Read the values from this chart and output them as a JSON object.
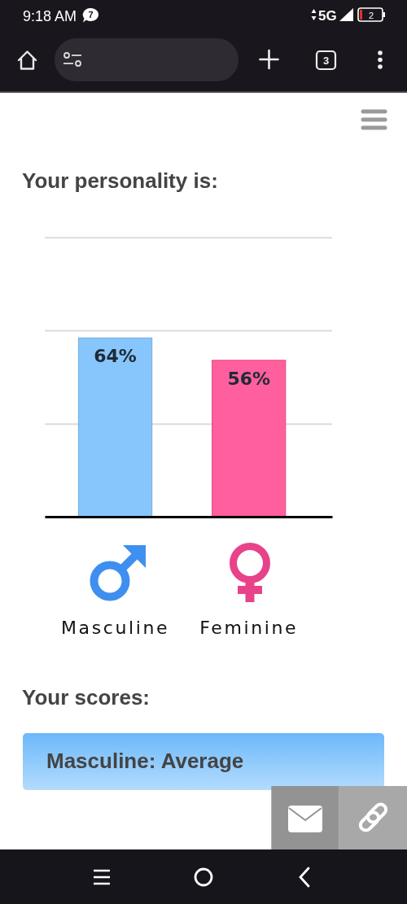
{
  "chart_data": {
    "type": "bar",
    "title": "Your personality is:",
    "categories": [
      "Masculine",
      "Feminine"
    ],
    "values": [
      64,
      56
    ],
    "colors": [
      "#86c6fc",
      "#ff5f9c"
    ],
    "value_labels": [
      "64%",
      "56%"
    ],
    "ylim": [
      0,
      100
    ],
    "yticks": [
      {
        "value": 0,
        "label": null
      },
      {
        "value": 33.3,
        "label": null
      },
      {
        "value": 66.7,
        "label": null
      },
      {
        "value": 100,
        "label": null
      }
    ],
    "grid": "y",
    "tick_labels": "x",
    "annotations": [
      "9:18 AM",
      "7",
      "5G",
      "2",
      "3",
      "Your scores:",
      "Masculine: Average"
    ]
  }
}
